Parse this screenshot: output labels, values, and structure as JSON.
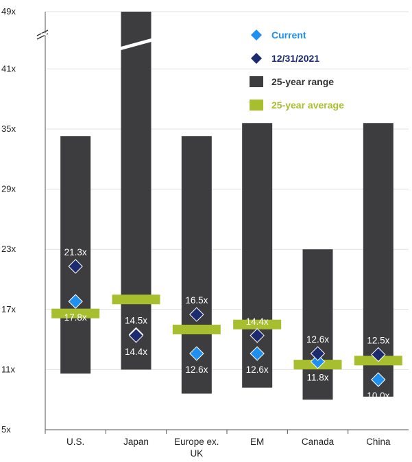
{
  "chart_data": {
    "type": "bar",
    "subtitle": "",
    "categories": [
      "U.S.",
      "Japan",
      "Europe ex. UK",
      "EM",
      "Canada",
      "China"
    ],
    "y_ticks": [
      "49x",
      "41x",
      "35x",
      "29x",
      "23x",
      "17x",
      "11x",
      "5x"
    ],
    "ylim": [
      5,
      49
    ],
    "axis_break": "between 41x and 49x",
    "grid": true,
    "legend_position": "top-right",
    "series": [
      {
        "name": "25-year range",
        "kind": "range_bar",
        "color": "#3d3d40",
        "low": [
          10.6,
          11.0,
          8.6,
          9.2,
          8.0,
          8.3
        ],
        "high": [
          34.3,
          49.0,
          34.3,
          35.6,
          23.0,
          35.6
        ]
      },
      {
        "name": "25-year average",
        "kind": "marker_bar",
        "color": "#a7bf2e",
        "values": [
          16.6,
          18.0,
          15.0,
          15.5,
          11.5,
          11.9
        ]
      },
      {
        "name": "Current",
        "kind": "diamond",
        "color": "#1f8ff0",
        "values": [
          17.8,
          14.5,
          12.6,
          12.6,
          11.8,
          10.0
        ],
        "labels": [
          "17.8x",
          "14.5x",
          "12.6x",
          "12.6x",
          "11.8x",
          "10.0x"
        ]
      },
      {
        "name": "12/31/2021",
        "kind": "diamond",
        "color": "#1c2b6e",
        "values": [
          21.3,
          14.4,
          16.5,
          14.4,
          12.6,
          12.5
        ],
        "labels": [
          "21.3x",
          "14.4x",
          "16.5x",
          "14.4x",
          "12.6x",
          "12.5x"
        ]
      }
    ]
  },
  "legend": [
    {
      "label": "Current",
      "color": "#1f8ff0",
      "marker": "diamond"
    },
    {
      "label": "12/31/2021",
      "color": "#1c2b6e",
      "marker": "diamond"
    },
    {
      "label": "25-year range",
      "color": "#3d3d40",
      "marker": "square"
    },
    {
      "label": "25-year average",
      "color": "#a7bf2e",
      "marker": "square"
    }
  ]
}
